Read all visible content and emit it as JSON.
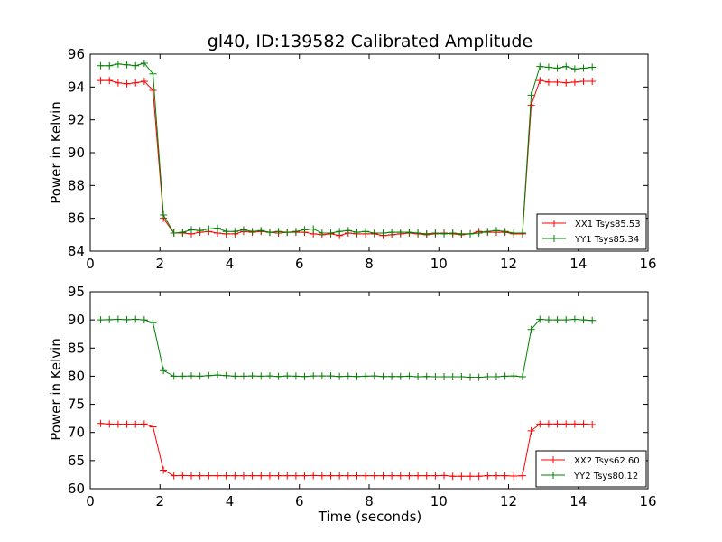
{
  "chart_data": [
    {
      "type": "line",
      "title": "gl40, ID:139582 Calibrated Amplitude",
      "xlabel": "",
      "ylabel": "Power in Kelvin",
      "xlim": [
        0,
        16
      ],
      "ylim": [
        84,
        96
      ],
      "xticks": [
        0,
        2,
        4,
        6,
        8,
        10,
        12,
        14,
        16
      ],
      "yticks": [
        84,
        86,
        88,
        90,
        92,
        94,
        96
      ],
      "xtick_labels": [
        "0",
        "2",
        "4",
        "6",
        "8",
        "10",
        "12",
        "14",
        "16"
      ],
      "ytick_labels": [
        "84",
        "86",
        "88",
        "90",
        "92",
        "94",
        "96"
      ],
      "legend_position": "lower-right",
      "x": [
        0.3,
        0.55,
        0.8,
        1.05,
        1.3,
        1.55,
        1.8,
        2.1,
        2.4,
        2.65,
        2.9,
        3.15,
        3.4,
        3.65,
        3.9,
        4.15,
        4.4,
        4.65,
        4.9,
        5.15,
        5.4,
        5.65,
        5.9,
        6.15,
        6.4,
        6.65,
        6.9,
        7.15,
        7.4,
        7.65,
        7.9,
        8.15,
        8.4,
        8.65,
        8.9,
        9.15,
        9.4,
        9.65,
        9.9,
        10.15,
        10.4,
        10.65,
        10.9,
        11.15,
        11.4,
        11.65,
        11.9,
        12.15,
        12.4,
        12.65,
        12.9,
        13.15,
        13.4,
        13.65,
        13.9,
        14.15,
        14.4
      ],
      "series": [
        {
          "name": "XX1 Tsys85.53",
          "color": "#ff0000",
          "values": [
            94.4,
            94.4,
            94.25,
            94.2,
            94.25,
            94.35,
            93.8,
            86.0,
            85.1,
            85.1,
            85.05,
            85.15,
            85.2,
            85.1,
            85.05,
            85.05,
            85.2,
            85.15,
            85.2,
            85.15,
            85.1,
            85.15,
            85.15,
            85.15,
            85.05,
            85.0,
            85.05,
            84.95,
            85.1,
            85.05,
            85.05,
            85.05,
            84.95,
            85.0,
            85.05,
            85.1,
            85.05,
            85.0,
            85.05,
            85.1,
            85.05,
            85.0,
            85.05,
            85.2,
            85.15,
            85.15,
            85.15,
            85.05,
            85.05,
            92.9,
            94.4,
            94.3,
            94.3,
            94.25,
            94.3,
            94.35,
            94.35
          ]
        },
        {
          "name": "YY1 Tsys85.34",
          "color": "#008000",
          "values": [
            95.3,
            95.3,
            95.4,
            95.35,
            95.3,
            95.45,
            94.8,
            86.2,
            85.1,
            85.15,
            85.3,
            85.25,
            85.35,
            85.4,
            85.2,
            85.2,
            85.3,
            85.2,
            85.25,
            85.15,
            85.2,
            85.15,
            85.2,
            85.3,
            85.35,
            85.1,
            85.1,
            85.2,
            85.25,
            85.15,
            85.2,
            85.1,
            85.1,
            85.15,
            85.15,
            85.15,
            85.1,
            85.05,
            85.1,
            85.05,
            85.1,
            85.05,
            85.05,
            85.1,
            85.2,
            85.25,
            85.2,
            85.1,
            85.1,
            93.5,
            95.25,
            95.2,
            95.15,
            95.25,
            95.1,
            95.15,
            95.2
          ]
        }
      ]
    },
    {
      "type": "line",
      "title": "",
      "xlabel": "Time (seconds)",
      "ylabel": "Power in Kelvin",
      "xlim": [
        0,
        16
      ],
      "ylim": [
        60,
        95
      ],
      "xticks": [
        0,
        2,
        4,
        6,
        8,
        10,
        12,
        14,
        16
      ],
      "yticks": [
        60,
        65,
        70,
        75,
        80,
        85,
        90,
        95
      ],
      "xtick_labels": [
        "0",
        "2",
        "4",
        "6",
        "8",
        "10",
        "12",
        "14",
        "16"
      ],
      "ytick_labels": [
        "60",
        "65",
        "70",
        "75",
        "80",
        "85",
        "90",
        "95"
      ],
      "legend_position": "lower-right",
      "x": [
        0.3,
        0.55,
        0.8,
        1.05,
        1.3,
        1.55,
        1.8,
        2.1,
        2.4,
        2.65,
        2.9,
        3.15,
        3.4,
        3.65,
        3.9,
        4.15,
        4.4,
        4.65,
        4.9,
        5.15,
        5.4,
        5.65,
        5.9,
        6.15,
        6.4,
        6.65,
        6.9,
        7.15,
        7.4,
        7.65,
        7.9,
        8.15,
        8.4,
        8.65,
        8.9,
        9.15,
        9.4,
        9.65,
        9.9,
        10.15,
        10.4,
        10.65,
        10.9,
        11.15,
        11.4,
        11.65,
        11.9,
        12.15,
        12.4,
        12.65,
        12.9,
        13.15,
        13.4,
        13.65,
        13.9,
        14.15,
        14.4
      ],
      "series": [
        {
          "name": "XX2 Tsys62.60",
          "color": "#ff0000",
          "values": [
            71.6,
            71.5,
            71.45,
            71.45,
            71.45,
            71.5,
            71.0,
            63.3,
            62.3,
            62.35,
            62.3,
            62.3,
            62.3,
            62.3,
            62.3,
            62.3,
            62.3,
            62.3,
            62.3,
            62.3,
            62.3,
            62.3,
            62.3,
            62.3,
            62.35,
            62.3,
            62.3,
            62.3,
            62.3,
            62.3,
            62.3,
            62.3,
            62.3,
            62.3,
            62.3,
            62.3,
            62.3,
            62.3,
            62.3,
            62.35,
            62.2,
            62.2,
            62.2,
            62.2,
            62.3,
            62.3,
            62.3,
            62.25,
            62.3,
            70.3,
            71.5,
            71.5,
            71.5,
            71.5,
            71.5,
            71.5,
            71.4
          ]
        },
        {
          "name": "YY2 Tsys80.12",
          "color": "#008000",
          "values": [
            90.0,
            90.05,
            90.1,
            90.05,
            90.1,
            90.0,
            89.5,
            81.0,
            80.0,
            80.0,
            80.05,
            80.0,
            80.1,
            80.2,
            80.1,
            80.0,
            80.0,
            80.05,
            80.0,
            80.05,
            79.95,
            80.05,
            80.0,
            79.95,
            80.05,
            80.05,
            80.05,
            79.95,
            80.0,
            79.95,
            80.0,
            80.05,
            79.95,
            79.95,
            79.95,
            80.0,
            79.9,
            79.95,
            79.9,
            79.9,
            79.9,
            79.9,
            79.8,
            79.8,
            79.9,
            79.9,
            80.0,
            80.05,
            79.9,
            88.3,
            90.1,
            90.0,
            90.0,
            90.0,
            90.1,
            90.0,
            89.9
          ]
        }
      ]
    }
  ]
}
